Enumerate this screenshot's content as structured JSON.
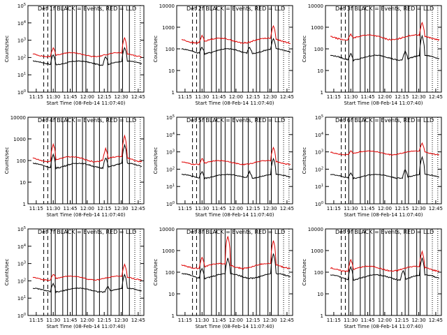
{
  "colors": {
    "events": "#000000",
    "lld": "#e00000",
    "background": "#ffffff"
  },
  "x_ticks": [
    "11:15",
    "11:30",
    "11:45",
    "12:00",
    "12:15",
    "12:30",
    "12:45"
  ],
  "chart_data": [
    {
      "type": "line",
      "title": "Det 1f BLACK = Events, RED = LLD",
      "xlabel": "Start Time (08-Feb-14 11:07:40)",
      "ylabel": "Counts/sec",
      "yscale": "log",
      "ylim": [
        1,
        100000
      ],
      "y_tick_labels": [
        "10^0",
        "10^1",
        "10^2",
        "10^3",
        "10^4",
        "10^5"
      ],
      "series": [
        {
          "name": "Events",
          "base": 50,
          "spikes": [
            [
              11.5,
              4
            ],
            [
              12.27,
              3
            ],
            [
              12.55,
              6
            ]
          ]
        },
        {
          "name": "LLD",
          "base": 150,
          "spikes": [
            [
              11.5,
              3
            ],
            [
              12.55,
              8
            ]
          ]
        }
      ]
    },
    {
      "type": "line",
      "title": "Det 2f BLACK = Events, RED = LLD",
      "xlabel": "Start Time (08-Feb-14 11:07:40)",
      "ylabel": "Counts/sec",
      "yscale": "log",
      "ylim": [
        1,
        10000
      ],
      "y_tick_labels": [
        "1",
        "10",
        "100",
        "1000",
        "10000"
      ],
      "series": [
        {
          "name": "Events",
          "base": 80,
          "spikes": [
            [
              11.5,
              2
            ],
            [
              12.2,
              2
            ],
            [
              12.55,
              3
            ]
          ]
        },
        {
          "name": "LLD",
          "base": 250,
          "spikes": [
            [
              11.5,
              2
            ],
            [
              12.55,
              4
            ]
          ]
        }
      ]
    },
    {
      "type": "line",
      "title": "Det 3f BLACK = Events, RED = LLD",
      "xlabel": "Start Time (08-Feb-14 11:07:40)",
      "ylabel": "Counts/sec",
      "yscale": "log",
      "ylim": [
        1,
        10000
      ],
      "y_tick_labels": [
        "1",
        "10",
        "100",
        "1000",
        "10000"
      ],
      "series": [
        {
          "name": "Events",
          "base": 40,
          "spikes": [
            [
              11.5,
              2
            ],
            [
              12.3,
              2.5
            ],
            [
              12.55,
              8
            ]
          ]
        },
        {
          "name": "LLD",
          "base": 350,
          "spikes": [
            [
              11.5,
              1.6
            ],
            [
              12.55,
              4
            ]
          ]
        }
      ]
    },
    {
      "type": "line",
      "title": "Det 4f BLACK = Events, RED = LLD",
      "xlabel": "Start Time (08-Feb-14 11:07:40)",
      "ylabel": "Counts/sec",
      "yscale": "log",
      "ylim": [
        1,
        10000
      ],
      "y_tick_labels": [
        "1",
        "10",
        "100",
        "1000",
        "10000"
      ],
      "series": [
        {
          "name": "Events",
          "base": 60,
          "spikes": [
            [
              11.5,
              4
            ],
            [
              12.27,
              3
            ],
            [
              12.55,
              7
            ]
          ]
        },
        {
          "name": "LLD",
          "base": 120,
          "spikes": [
            [
              11.5,
              6
            ],
            [
              12.27,
              3
            ],
            [
              12.55,
              10
            ]
          ]
        }
      ]
    },
    {
      "type": "line",
      "title": "Det 5f BLACK = Events, RED = LLD",
      "xlabel": "Start Time (08-Feb-14 11:07:40)",
      "ylabel": "Counts/sec",
      "yscale": "log",
      "ylim": [
        1,
        100000
      ],
      "y_tick_labels": [
        "10^0",
        "10^1",
        "10^2",
        "10^3",
        "10^4",
        "10^5"
      ],
      "series": [
        {
          "name": "Events",
          "base": 40,
          "spikes": [
            [
              11.5,
              2.5
            ],
            [
              12.2,
              2.5
            ],
            [
              12.55,
              8
            ]
          ]
        },
        {
          "name": "LLD",
          "base": 250,
          "spikes": [
            [
              11.5,
              2
            ],
            [
              12.55,
              6
            ]
          ]
        }
      ]
    },
    {
      "type": "line",
      "title": "Det 6f BLACK = Events, RED = LLD",
      "xlabel": "Start Time (08-Feb-14 11:07:40)",
      "ylabel": "Counts/sec",
      "yscale": "log",
      "ylim": [
        1,
        100000
      ],
      "y_tick_labels": [
        "10^0",
        "10^1",
        "10^2",
        "10^3",
        "10^4",
        "10^5"
      ],
      "series": [
        {
          "name": "Events",
          "base": 40,
          "spikes": [
            [
              11.5,
              2
            ],
            [
              12.3,
              3
            ],
            [
              12.55,
              10
            ]
          ]
        },
        {
          "name": "LLD",
          "base": 900,
          "spikes": [
            [
              11.5,
              1.5
            ],
            [
              12.55,
              3
            ]
          ]
        }
      ]
    },
    {
      "type": "line",
      "title": "Det 7f BLACK = Events, RED = LLD",
      "xlabel": "Start Time (08-Feb-14 11:07:40)",
      "ylabel": "Counts/sec",
      "yscale": "log",
      "ylim": [
        1,
        100000
      ],
      "y_tick_labels": [
        "10^0",
        "10^1",
        "10^2",
        "10^3",
        "10^4",
        "10^5"
      ],
      "series": [
        {
          "name": "Events",
          "base": 30,
          "spikes": [
            [
              11.5,
              3
            ],
            [
              12.3,
              2
            ],
            [
              12.55,
              6
            ]
          ]
        },
        {
          "name": "LLD",
          "base": 150,
          "spikes": [
            [
              11.5,
              2
            ],
            [
              12.55,
              5
            ]
          ]
        }
      ]
    },
    {
      "type": "line",
      "title": "Det 8f BLACK = Events, RED = LLD",
      "xlabel": "Start Time (08-Feb-14 11:07:40)",
      "ylabel": "Counts/sec",
      "yscale": "log",
      "ylim": [
        1,
        10000
      ],
      "y_tick_labels": [
        "1",
        "10",
        "100",
        "1000",
        "10000"
      ],
      "series": [
        {
          "name": "Events",
          "base": 70,
          "spikes": [
            [
              11.5,
              3
            ],
            [
              11.88,
              5
            ],
            [
              12.55,
              8
            ]
          ]
        },
        {
          "name": "LLD",
          "base": 200,
          "spikes": [
            [
              11.5,
              3
            ],
            [
              11.88,
              20
            ],
            [
              12.55,
              12
            ]
          ]
        }
      ]
    },
    {
      "type": "line",
      "title": "Det 9f BLACK = Events, RED = LLD",
      "xlabel": "Start Time (08-Feb-14 11:07:40)",
      "ylabel": "Counts/sec",
      "yscale": "log",
      "ylim": [
        1,
        10000
      ],
      "y_tick_labels": [
        "1",
        "10",
        "100",
        "1000",
        "10000"
      ],
      "series": [
        {
          "name": "Events",
          "base": 60,
          "spikes": [
            [
              11.5,
              4
            ],
            [
              12.27,
              2.5
            ],
            [
              12.55,
              6
            ]
          ]
        },
        {
          "name": "LLD",
          "base": 150,
          "spikes": [
            [
              11.5,
              3
            ],
            [
              12.55,
              5
            ]
          ]
        }
      ]
    }
  ]
}
